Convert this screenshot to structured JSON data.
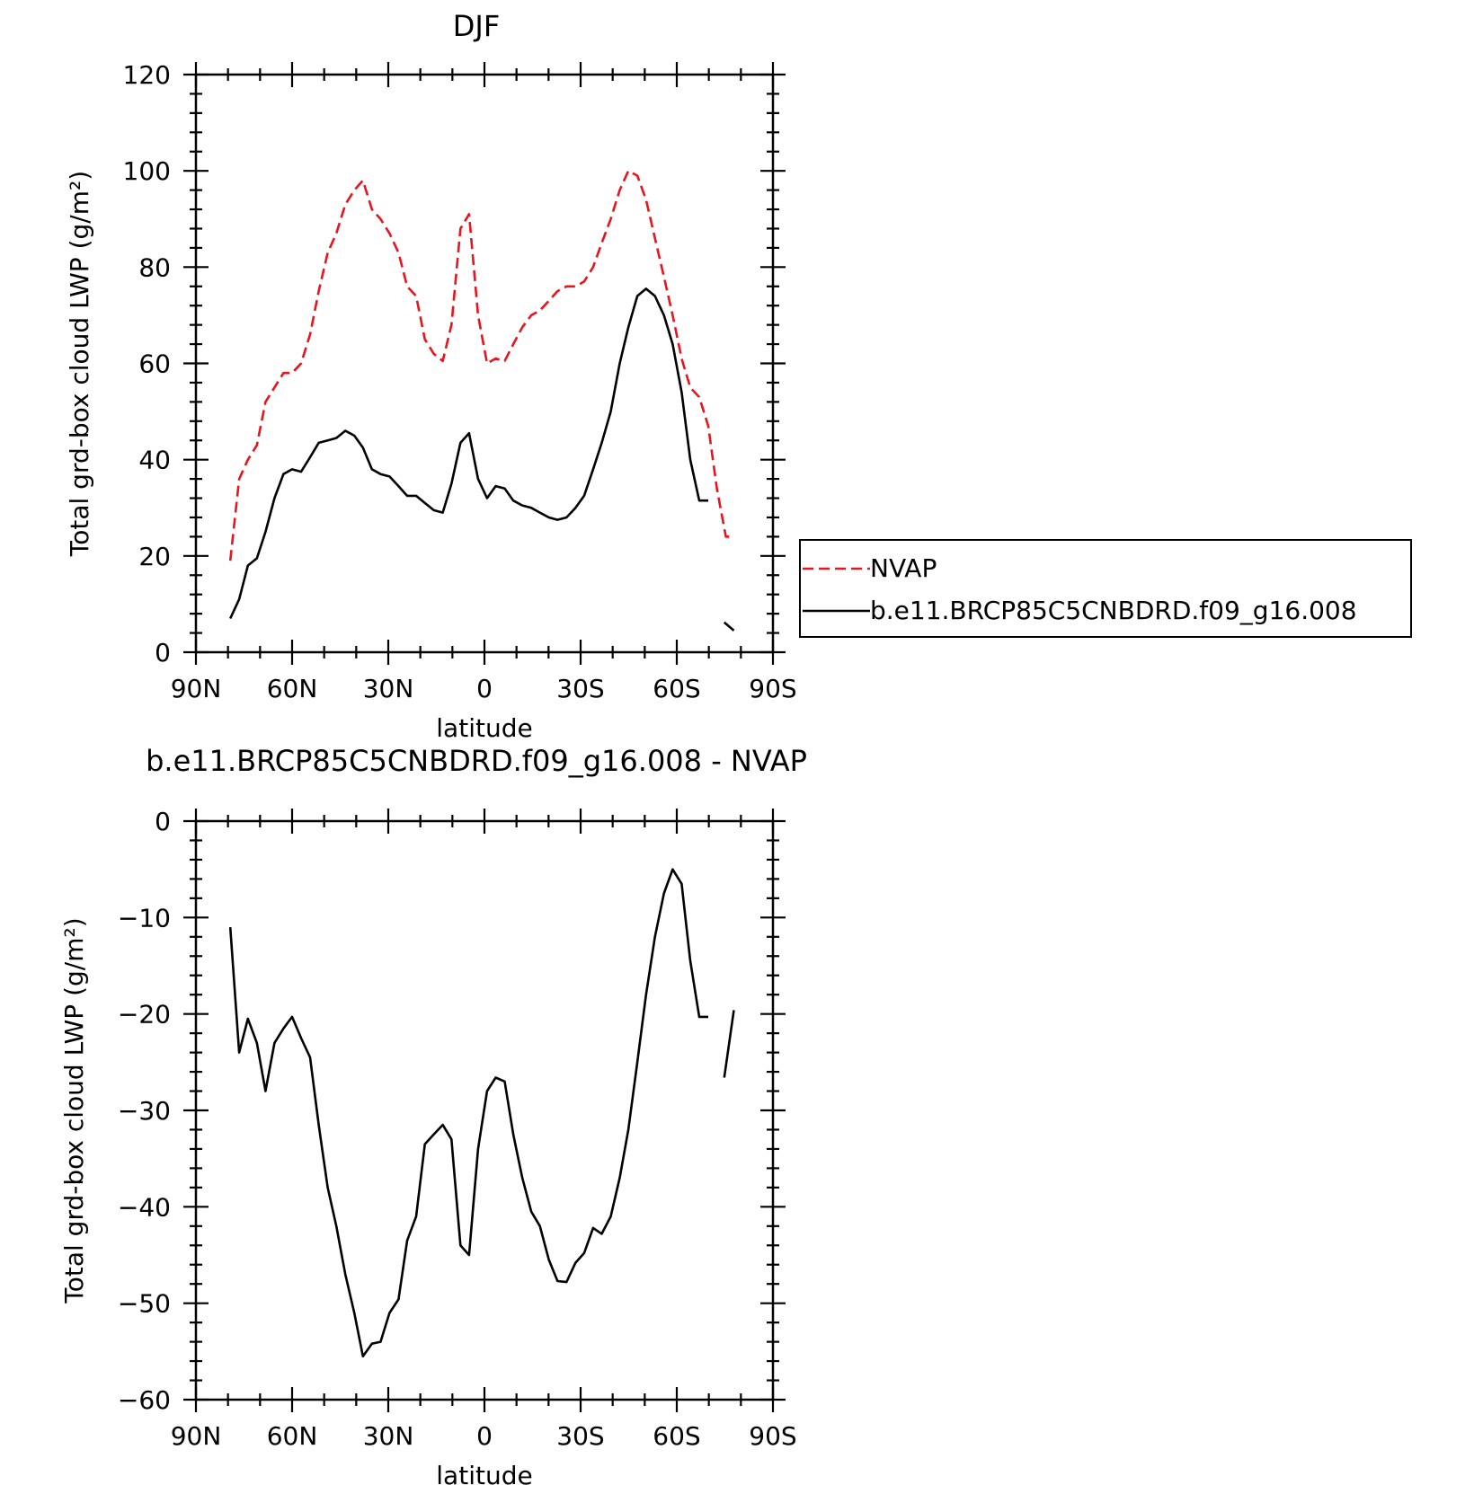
{
  "chart_data": [
    {
      "type": "line",
      "title": "DJF",
      "xlabel": "latitude",
      "ylabel": "Total grd-box cloud LWP (g/m²)",
      "xlim": [
        -90,
        90
      ],
      "ylim": [
        0,
        120
      ],
      "x_ticks": [
        -90,
        -60,
        -30,
        0,
        30,
        60,
        90
      ],
      "x_tick_labels": [
        "90N",
        "60N",
        "30N",
        "0",
        "30S",
        "60S",
        "90S"
      ],
      "y_ticks": [
        0,
        20,
        40,
        60,
        80,
        100,
        120
      ],
      "y_tick_labels": [
        "0",
        "20",
        "40",
        "60",
        "80",
        "100",
        "120"
      ],
      "legend_position": "right",
      "series": [
        {
          "name": "NVAP",
          "color": "#e8141e",
          "dash": "dashed",
          "segments": [
            {
              "x": [
                -79.3,
                -76.5,
                -73.8,
                -71.0,
                -68.3,
                -65.5,
                -62.7,
                -60.0,
                -57.2,
                -54.4,
                -51.7,
                -48.9,
                -46.2,
                -43.4,
                -40.6,
                -37.9,
                -35.1,
                -32.4,
                -29.6,
                -26.8,
                -24.1,
                -21.3,
                -18.6,
                -15.8,
                -13.0,
                -10.3,
                -7.5,
                -4.8,
                -2.0,
                0.8,
                3.5,
                6.3,
                9.0,
                11.8,
                14.6,
                17.3,
                20.1,
                22.8,
                25.6,
                28.4,
                31.1,
                33.9,
                36.6,
                39.4,
                42.2,
                44.9,
                47.7,
                50.4,
                53.2,
                56.0,
                58.7,
                61.5,
                64.2,
                67.0,
                69.8,
                72.5,
                75.3,
                78.0
              ],
              "y": [
                19,
                36,
                40,
                43,
                52,
                55,
                58,
                58,
                60,
                66,
                75,
                83,
                87,
                93,
                96,
                98,
                92,
                90,
                87,
                83,
                76,
                74,
                65,
                62,
                60.5,
                68,
                88,
                91,
                70,
                60,
                61,
                60.5,
                64,
                67.5,
                70,
                71,
                73,
                75,
                76,
                76,
                77,
                80,
                85,
                90,
                96,
                100,
                99,
                94,
                86,
                78,
                70,
                61,
                55,
                53,
                47,
                34,
                24,
                24
              ]
            }
          ]
        },
        {
          "name": "b.e11.BRCP85C5CNBDRD.f09_g16.008",
          "color": "#000000",
          "dash": "solid",
          "segments": [
            {
              "x": [
                -79.3,
                -76.5,
                -73.8,
                -71.0,
                -68.3,
                -65.5,
                -62.7,
                -60.0,
                -57.2,
                -54.4,
                -51.7,
                -48.9,
                -46.2,
                -43.4,
                -40.6,
                -37.9,
                -35.1,
                -32.4,
                -29.6,
                -26.8,
                -24.1,
                -21.3,
                -18.6,
                -15.8,
                -13.0,
                -10.3,
                -7.5,
                -4.8,
                -2.0,
                0.8,
                3.5,
                6.3,
                9.0,
                11.8,
                14.6,
                17.3,
                20.1,
                22.8,
                25.6,
                28.4,
                31.1,
                33.9,
                36.6,
                39.4,
                42.2,
                44.9,
                47.7,
                50.4,
                53.2,
                56.0,
                58.7,
                61.5,
                64.2,
                67.0,
                69.8
              ],
              "y": [
                7,
                11,
                18,
                19.5,
                25,
                32,
                37,
                38,
                37.5,
                40.5,
                43.5,
                44,
                44.5,
                46,
                45,
                42.5,
                38,
                37,
                36.5,
                34.5,
                32.5,
                32.5,
                31,
                29.5,
                29,
                35,
                43.5,
                45.5,
                36,
                32,
                34.5,
                34,
                31.5,
                30.5,
                30,
                29,
                28,
                27.5,
                28,
                30,
                32.5,
                38,
                43.5,
                50,
                60,
                67.5,
                74,
                75.5,
                74,
                70,
                64,
                54,
                40,
                31.5,
                31.5
              ]
            },
            {
              "x": [
                74.8,
                77.8
              ],
              "y": [
                6.2,
                4.5
              ]
            }
          ]
        }
      ]
    },
    {
      "type": "line",
      "title": "b.e11.BRCP85C5CNBDRD.f09_g16.008 - NVAP",
      "xlabel": "latitude",
      "ylabel": "Total grd-box cloud LWP (g/m²)",
      "xlim": [
        -90,
        90
      ],
      "ylim": [
        -60,
        0
      ],
      "x_ticks": [
        -90,
        -60,
        -30,
        0,
        30,
        60,
        90
      ],
      "x_tick_labels": [
        "90N",
        "60N",
        "30N",
        "0",
        "30S",
        "60S",
        "90S"
      ],
      "y_ticks": [
        -60,
        -50,
        -40,
        -30,
        -20,
        -10,
        0
      ],
      "y_tick_labels": [
        "-60",
        "-50",
        "-40",
        "-30",
        "-20",
        "-10",
        "0"
      ],
      "series": [
        {
          "color": "#000000",
          "dash": "solid",
          "segments": [
            {
              "x": [
                -79.3,
                -76.5,
                -73.8,
                -71.0,
                -68.3,
                -65.5,
                -62.7,
                -60.0,
                -57.2,
                -54.4,
                -51.7,
                -48.9,
                -46.2,
                -43.4,
                -40.6,
                -37.9,
                -35.1,
                -32.4,
                -29.6,
                -26.8,
                -24.1,
                -21.3,
                -18.6,
                -15.8,
                -13.0,
                -10.3,
                -7.5,
                -4.8,
                -2.0,
                0.8,
                3.5,
                6.3,
                9.0,
                11.8,
                14.6,
                17.3,
                20.1,
                22.8,
                25.6,
                28.4,
                31.1,
                33.9,
                36.6,
                39.4,
                42.2,
                44.9,
                47.7,
                50.4,
                53.2,
                56.0,
                58.7,
                61.5,
                64.2,
                67.0,
                69.8
              ],
              "y": [
                -11,
                -24,
                -20.5,
                -23,
                -28,
                -23,
                -21.5,
                -20.3,
                -22.5,
                -24.5,
                -31.5,
                -38,
                -42,
                -47,
                -51,
                -55.5,
                -54.2,
                -54,
                -51,
                -49.6,
                -43.5,
                -41,
                -33.5,
                -32.5,
                -31.5,
                -33,
                -44,
                -45,
                -34,
                -28,
                -26.6,
                -27,
                -32.5,
                -37,
                -40.5,
                -42,
                -45.5,
                -47.7,
                -47.8,
                -45.8,
                -44.8,
                -42.2,
                -42.8,
                -41,
                -37,
                -32,
                -25,
                -18,
                -12,
                -7.5,
                -5,
                -6.5,
                -14.5,
                -20.3,
                -20.3
              ]
            },
            {
              "x": [
                74.8,
                77.8
              ],
              "y": [
                -26.6,
                -19.6
              ]
            }
          ]
        }
      ]
    }
  ],
  "legend": {
    "items": [
      {
        "label": "NVAP",
        "color": "#e8141e",
        "dash": "dashed"
      },
      {
        "label": "b.e11.BRCP85C5CNBDRD.f09_g16.008",
        "color": "#000000",
        "dash": "solid"
      }
    ]
  }
}
